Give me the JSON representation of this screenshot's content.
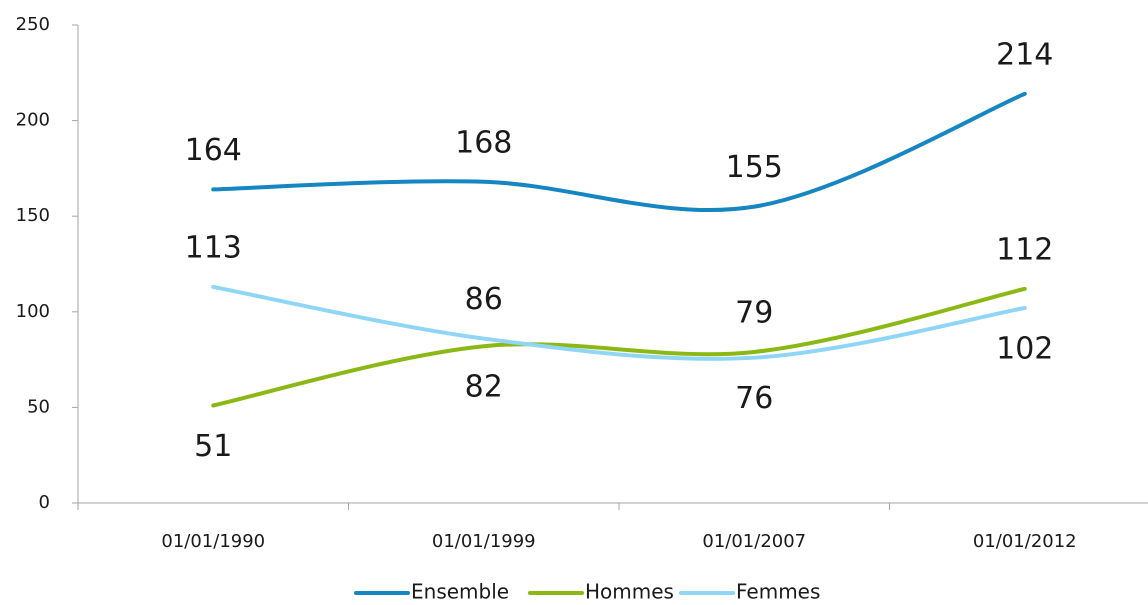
{
  "chart_data": {
    "type": "line",
    "categories": [
      "01/01/1990",
      "01/01/1999",
      "01/01/2007",
      "01/01/2012"
    ],
    "series": [
      {
        "name": "Ensemble",
        "color": "#1686c2",
        "values": [
          164,
          168,
          155,
          214
        ]
      },
      {
        "name": "Hommes",
        "color": "#8cb815",
        "values": [
          51,
          82,
          79,
          112
        ]
      },
      {
        "name": "Femmes",
        "color": "#8fd6f6",
        "values": [
          113,
          86,
          76,
          102
        ]
      }
    ],
    "ylim": [
      0,
      250
    ],
    "yticks": [
      0,
      50,
      100,
      150,
      200,
      250
    ],
    "grid": false,
    "smooth": true,
    "legend": "bottom"
  }
}
